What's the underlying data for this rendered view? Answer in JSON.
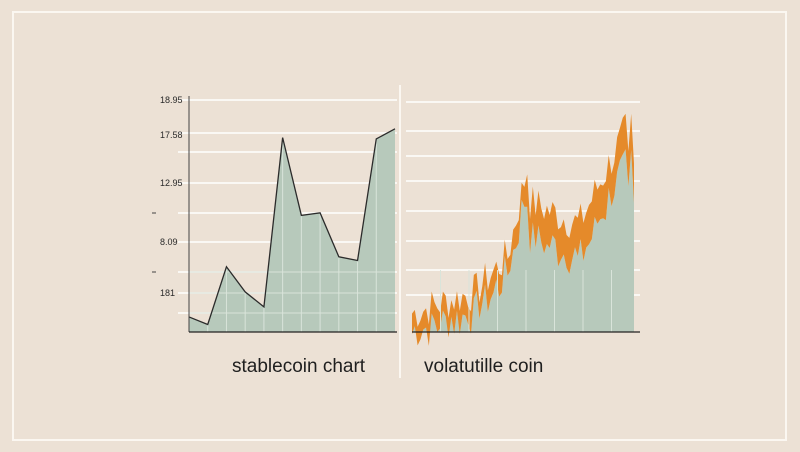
{
  "chart_data": [
    {
      "type": "area",
      "caption": "stablecoin chart",
      "y_tick_labels": [
        "18.95",
        "17.58",
        "12.95",
        "8.09",
        "181"
      ],
      "x": [
        1,
        2,
        3,
        4,
        5,
        6,
        7,
        8,
        9,
        10,
        11,
        12
      ],
      "values": [
        1.2,
        0.6,
        5.2,
        3.2,
        2.0,
        15.5,
        9.3,
        9.5,
        6.0,
        5.7,
        15.4,
        16.2
      ],
      "grid": "horizontal",
      "fill": "#b7c9bb",
      "stroke": "#2b2b2b"
    },
    {
      "type": "area",
      "caption": "volatutille coin",
      "x_count": 80,
      "values_seed": "noise_rising_to_peak",
      "values_summary": "starts near 1, small fluctuations, jumps ~12-14 mid-right, spikes to ~18 at the end",
      "grid": "horizontal",
      "fill": "#b7c9bb",
      "stroke": "#e58a2a"
    }
  ],
  "ui": {
    "left_caption": "stablecoin chart",
    "right_caption": "volatutille coin"
  },
  "colors": {
    "background": "#ece1d5",
    "area": "#b7c9bb",
    "orange": "#e58a2a",
    "line": "#2b2b2b",
    "grid": "#ffffff"
  }
}
